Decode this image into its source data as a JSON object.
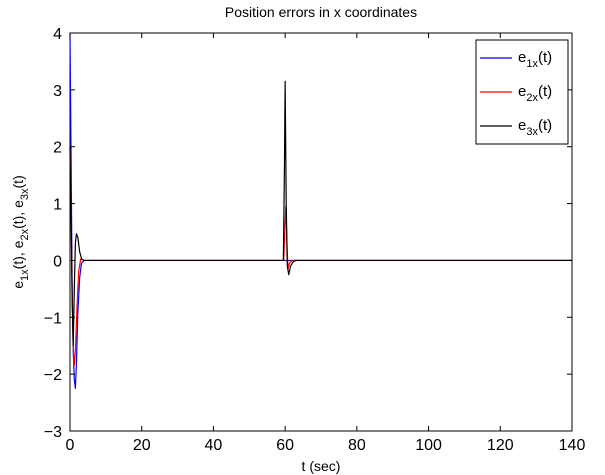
{
  "chart_data": {
    "type": "line",
    "title": "Position errors in x coordinates",
    "xlabel": "t (sec)",
    "ylabel": {
      "parts": [
        {
          "base": "e",
          "sub": "1x",
          "rest": "(t), "
        },
        {
          "base": "e",
          "sub": "2x",
          "rest": "(t), "
        },
        {
          "base": "e",
          "sub": "3x",
          "rest": "(t)"
        }
      ]
    },
    "xlim": [
      0,
      140
    ],
    "ylim": [
      -3,
      4
    ],
    "xticks": [
      0,
      20,
      40,
      60,
      80,
      100,
      120,
      140
    ],
    "yticks": [
      -3,
      -2,
      -1,
      0,
      1,
      2,
      3,
      4
    ],
    "grid": false,
    "legend_position": "top-right",
    "series": [
      {
        "legend": {
          "base": "e",
          "sub": "1x",
          "rest": "(t)"
        },
        "color": "#0000ff",
        "points": [
          [
            0,
            4.0
          ],
          [
            0.3,
            1.8
          ],
          [
            0.6,
            -0.5
          ],
          [
            0.9,
            -1.6
          ],
          [
            1.2,
            -2.1
          ],
          [
            1.5,
            -2.25
          ],
          [
            1.8,
            -1.8
          ],
          [
            2.2,
            -0.9
          ],
          [
            2.7,
            -0.3
          ],
          [
            3.2,
            -0.05
          ],
          [
            4.0,
            0.0
          ],
          [
            140,
            0.0
          ]
        ]
      },
      {
        "legend": {
          "base": "e",
          "sub": "2x",
          "rest": "(t)"
        },
        "color": "#ff0000",
        "points": [
          [
            0,
            2.0
          ],
          [
            0.3,
            0.9
          ],
          [
            0.6,
            -0.6
          ],
          [
            0.9,
            -1.5
          ],
          [
            1.2,
            -1.85
          ],
          [
            1.5,
            -1.6
          ],
          [
            1.9,
            -0.9
          ],
          [
            2.4,
            -0.2
          ],
          [
            3.0,
            0.03
          ],
          [
            4.0,
            0.0
          ],
          [
            59.6,
            0.0
          ],
          [
            59.9,
            0.5
          ],
          [
            60.2,
            0.95
          ],
          [
            60.5,
            0.3
          ],
          [
            60.8,
            -0.15
          ],
          [
            61.2,
            -0.05
          ],
          [
            62.0,
            0.0
          ],
          [
            140,
            0.0
          ]
        ]
      },
      {
        "legend": {
          "base": "e",
          "sub": "3x",
          "rest": "(t)"
        },
        "color": "#000000",
        "points": [
          [
            0,
            2.0
          ],
          [
            0.3,
            0.8
          ],
          [
            0.6,
            -0.7
          ],
          [
            0.9,
            -1.5
          ],
          [
            1.2,
            -0.5
          ],
          [
            1.5,
            0.3
          ],
          [
            1.8,
            0.47
          ],
          [
            2.2,
            0.4
          ],
          [
            2.7,
            0.15
          ],
          [
            3.3,
            0.02
          ],
          [
            4.0,
            0.0
          ],
          [
            59.5,
            0.0
          ],
          [
            59.8,
            1.6
          ],
          [
            60.0,
            3.15
          ],
          [
            60.3,
            1.0
          ],
          [
            60.6,
            -0.1
          ],
          [
            61.0,
            -0.25
          ],
          [
            61.5,
            -0.1
          ],
          [
            62.3,
            -0.02
          ],
          [
            63.0,
            0.0
          ],
          [
            140,
            0.0
          ]
        ]
      }
    ]
  }
}
